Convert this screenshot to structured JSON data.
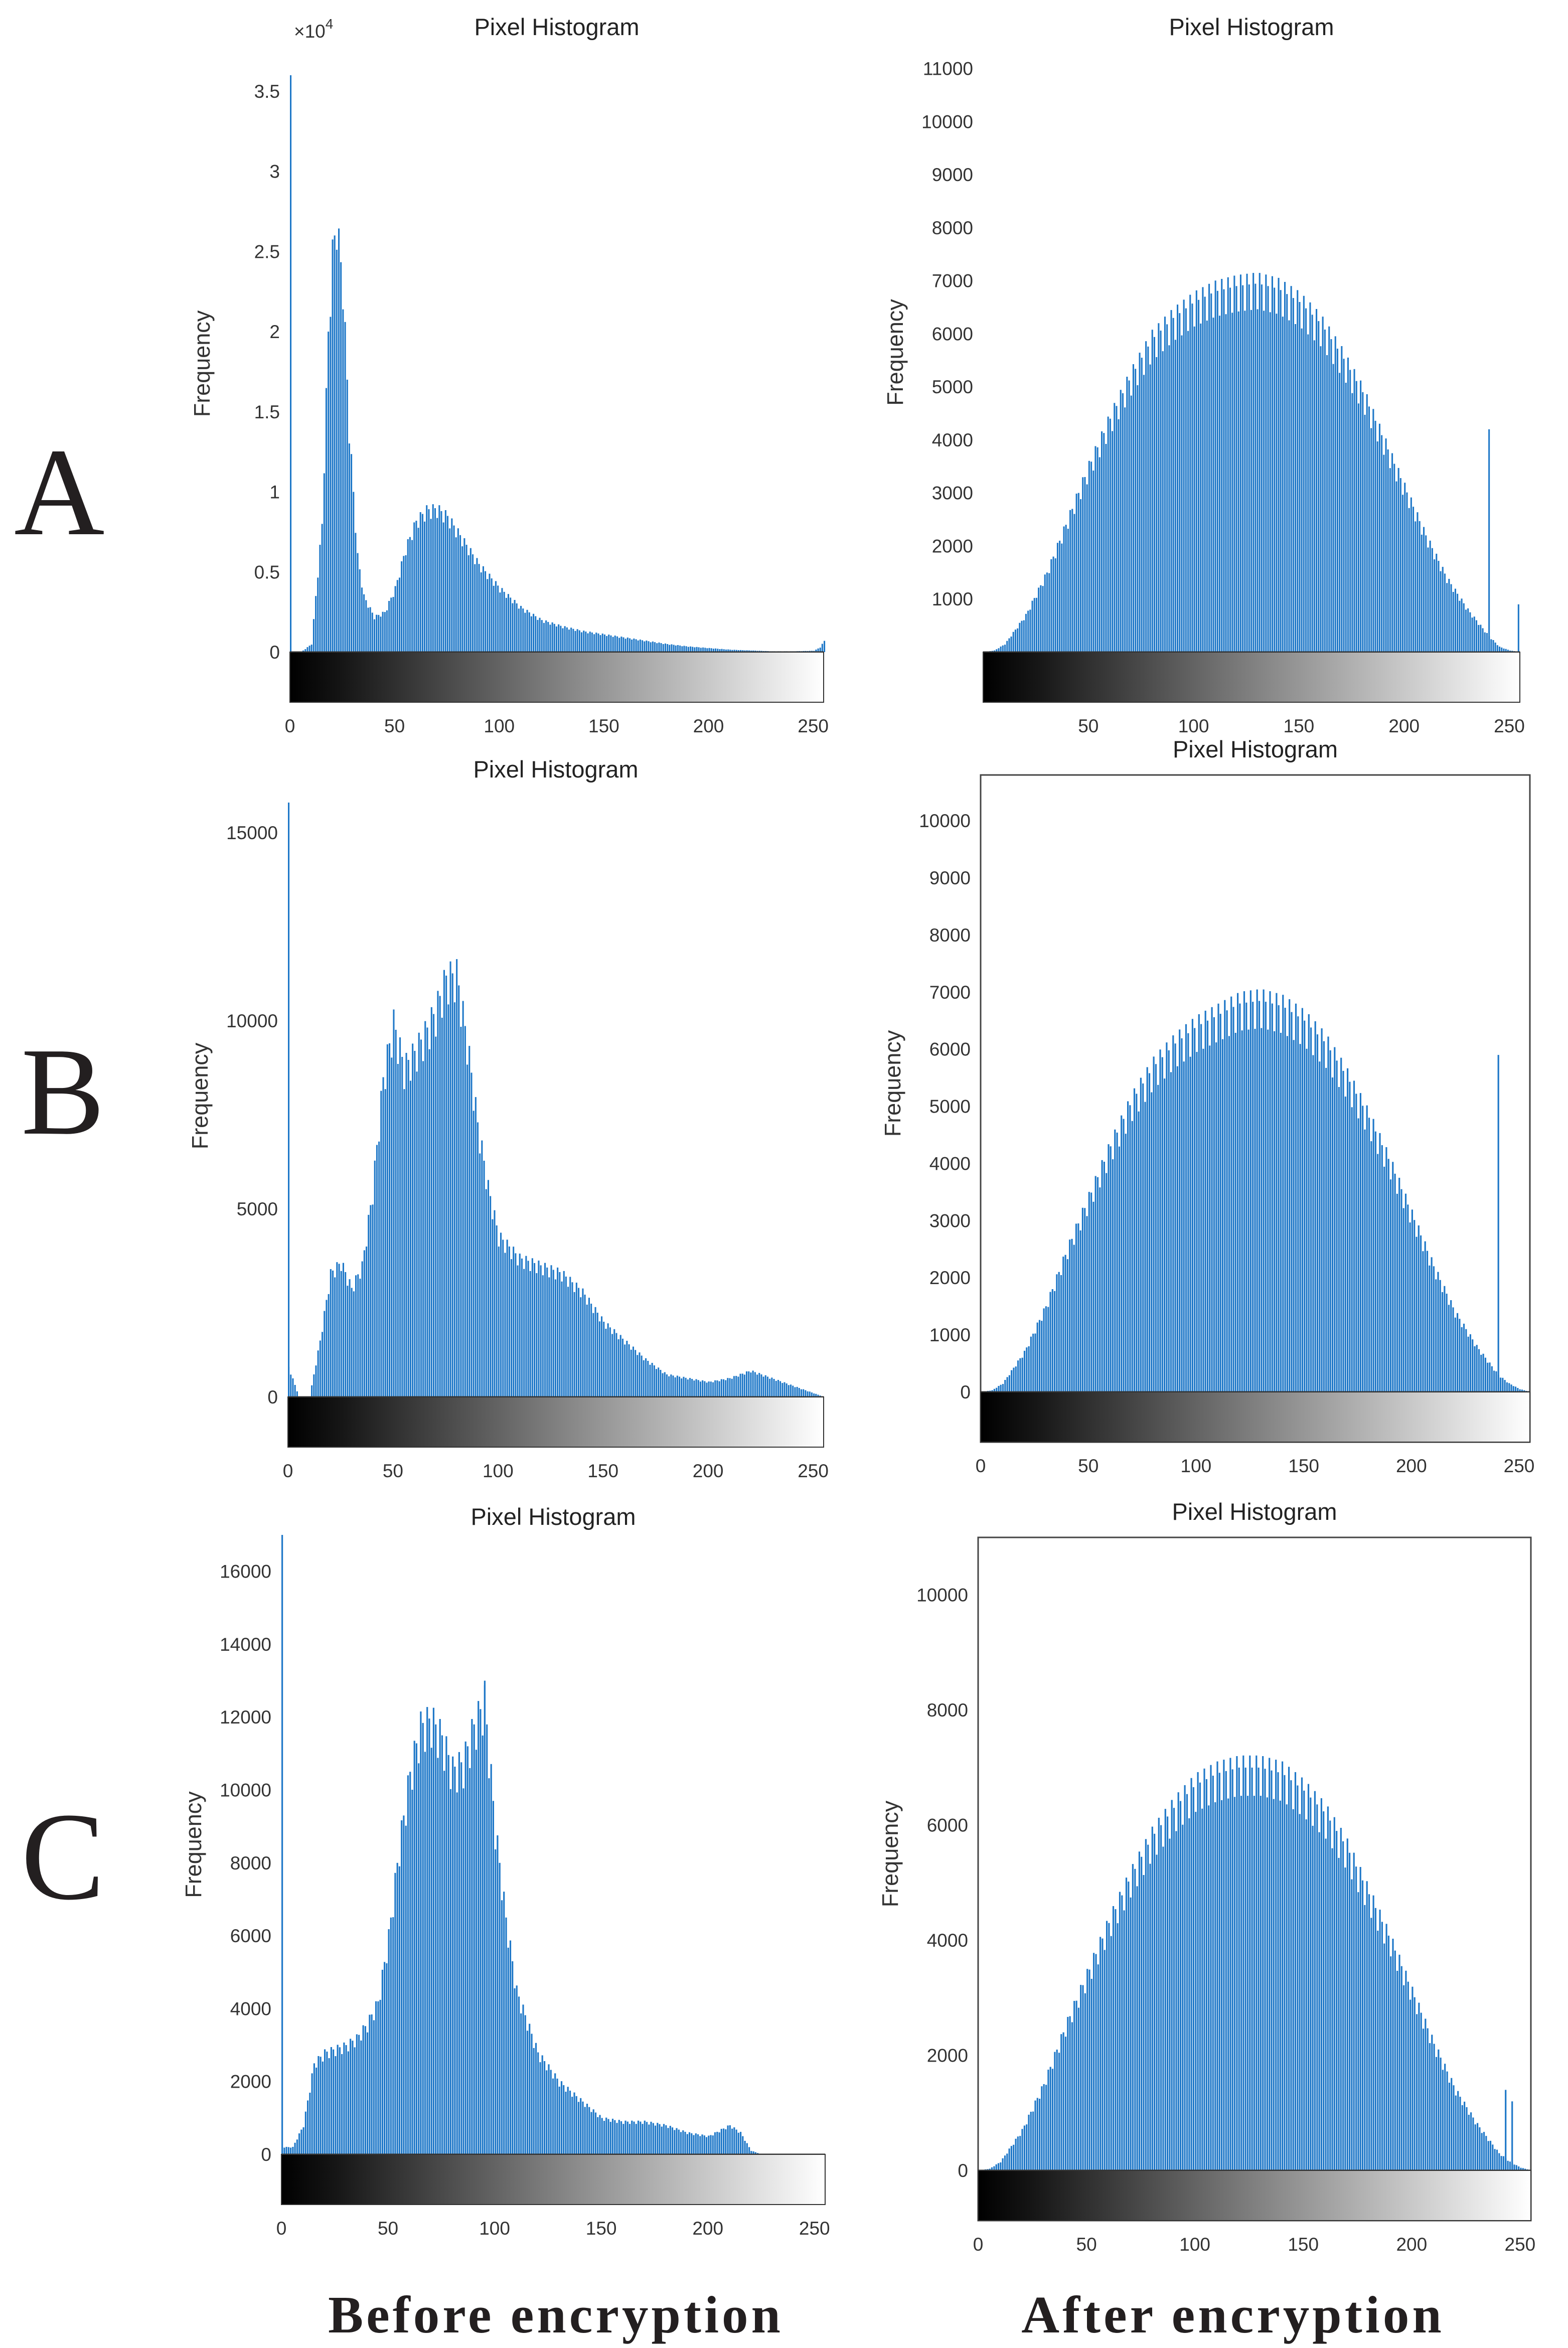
{
  "figure": {
    "rows": [
      {
        "letter": "A"
      },
      {
        "letter": "B"
      },
      {
        "letter": "C"
      }
    ],
    "captions": {
      "left": "Before encryption",
      "right": "After encryption"
    },
    "colors": {
      "bar": "#1f78c8",
      "frame": "#444444"
    }
  },
  "chart_data": [
    {
      "id": "A-before",
      "type": "bar",
      "title": "Pixel Histogram",
      "xlabel": "",
      "ylabel": "Frequency",
      "xlim": [
        0,
        255
      ],
      "ylim": [
        0,
        36000
      ],
      "y_exponent": "×10^4",
      "multiplier": "×10",
      "exponent": "4",
      "value_scale": 10000,
      "xticks": [
        "0",
        "50",
        "100",
        "150",
        "200",
        "250"
      ],
      "yticks": [
        "0",
        "0.5",
        "1",
        "1.5",
        "2",
        "2.5",
        "3",
        "3.5"
      ],
      "x": [
        0,
        5,
        10,
        15,
        18,
        20,
        22,
        25,
        28,
        32,
        35,
        40,
        45,
        50,
        55,
        60,
        65,
        70,
        75,
        80,
        85,
        90,
        100,
        110,
        120,
        130,
        140,
        150,
        160,
        170,
        180,
        190,
        200,
        210,
        220,
        230,
        240,
        250,
        253,
        255
      ],
      "y": [
        0,
        0,
        500,
        8000,
        20000,
        25000,
        27000,
        23000,
        14000,
        6000,
        3500,
        2200,
        2500,
        4000,
        6500,
        8200,
        8900,
        9000,
        8500,
        7500,
        6500,
        5500,
        4000,
        2800,
        2000,
        1600,
        1300,
        1100,
        900,
        700,
        500,
        350,
        250,
        150,
        100,
        50,
        50,
        80,
        300,
        700
      ],
      "extra_bars": [
        {
          "x": 0,
          "y": 36000
        }
      ]
    },
    {
      "id": "A-after",
      "type": "bar",
      "title": "Pixel Histogram",
      "xlabel": "",
      "ylabel": "Frequency",
      "xlim": [
        0,
        255
      ],
      "ylim": [
        0,
        11300
      ],
      "xticks": [
        "50",
        "100",
        "150",
        "200",
        "250"
      ],
      "yticks": [
        "1000",
        "2000",
        "3000",
        "4000",
        "5000",
        "6000",
        "7000",
        "8000",
        "9000",
        "10000",
        "11000"
      ],
      "x": [
        0,
        5,
        10,
        20,
        30,
        40,
        50,
        60,
        70,
        80,
        90,
        100,
        110,
        120,
        130,
        140,
        150,
        160,
        170,
        180,
        190,
        200,
        210,
        220,
        230,
        240,
        245,
        250,
        255
      ],
      "y": [
        0,
        30,
        150,
        700,
        1500,
        2500,
        3500,
        4400,
        5200,
        5900,
        6300,
        6600,
        6800,
        6900,
        6950,
        6850,
        6600,
        6200,
        5600,
        4900,
        4000,
        3100,
        2200,
        1400,
        800,
        300,
        100,
        30,
        0
      ],
      "extra_bars": [
        {
          "x": 240,
          "y": 4200
        },
        {
          "x": 254,
          "y": 900
        }
      ]
    },
    {
      "id": "B-before",
      "type": "bar",
      "title": "Pixel Histogram",
      "xlabel": "",
      "ylabel": "Frequency",
      "xlim": [
        0,
        255
      ],
      "ylim": [
        0,
        16000
      ],
      "xticks": [
        "0",
        "50",
        "100",
        "150",
        "200",
        "250"
      ],
      "yticks": [
        "0",
        "5000",
        "10000",
        "15000"
      ],
      "x": [
        0,
        5,
        10,
        15,
        20,
        25,
        30,
        35,
        40,
        45,
        50,
        55,
        60,
        65,
        70,
        75,
        80,
        85,
        90,
        95,
        100,
        110,
        120,
        130,
        140,
        150,
        160,
        170,
        180,
        190,
        200,
        210,
        220,
        230,
        240,
        250,
        255
      ],
      "y": [
        800,
        0,
        0,
        1500,
        3300,
        3600,
        2900,
        3500,
        5500,
        8500,
        10000,
        8800,
        9200,
        9700,
        10300,
        11200,
        11300,
        9500,
        7300,
        5600,
        4300,
        3700,
        3500,
        3300,
        2800,
        2000,
        1500,
        1000,
        600,
        500,
        400,
        500,
        700,
        500,
        300,
        100,
        0
      ],
      "extra_bars": [
        {
          "x": 0,
          "y": 15800
        }
      ]
    },
    {
      "id": "B-after",
      "type": "bar",
      "title": "Pixel Histogram",
      "xlabel": "",
      "ylabel": "Frequency",
      "xlim": [
        0,
        255
      ],
      "ylim": [
        0,
        10800
      ],
      "xticks": [
        "0",
        "50",
        "100",
        "150",
        "200",
        "250"
      ],
      "yticks": [
        "0",
        "1000",
        "2000",
        "3000",
        "4000",
        "5000",
        "6000",
        "7000",
        "8000",
        "9000",
        "10000"
      ],
      "x": [
        0,
        5,
        10,
        20,
        30,
        40,
        50,
        60,
        70,
        80,
        90,
        100,
        110,
        120,
        130,
        140,
        150,
        160,
        170,
        180,
        190,
        200,
        210,
        220,
        230,
        240,
        245,
        250,
        255
      ],
      "y": [
        0,
        30,
        150,
        700,
        1500,
        2500,
        3400,
        4300,
        5100,
        5700,
        6100,
        6400,
        6600,
        6800,
        6850,
        6750,
        6500,
        6100,
        5500,
        4800,
        4000,
        3100,
        2200,
        1400,
        800,
        300,
        150,
        50,
        0
      ],
      "extra_bars": [
        {
          "x": 240,
          "y": 5900
        }
      ]
    },
    {
      "id": "C-before",
      "type": "bar",
      "title": "Pixel Histogram",
      "xlabel": "",
      "ylabel": "Frequency",
      "xlim": [
        0,
        255
      ],
      "ylim": [
        0,
        17000
      ],
      "xticks": [
        "0",
        "50",
        "100",
        "150",
        "200",
        "250"
      ],
      "yticks": [
        "0",
        "2000",
        "4000",
        "6000",
        "8000",
        "10000",
        "12000",
        "14000",
        "16000"
      ],
      "x": [
        0,
        5,
        10,
        15,
        20,
        25,
        30,
        35,
        40,
        45,
        50,
        55,
        60,
        65,
        70,
        75,
        80,
        85,
        90,
        95,
        100,
        105,
        110,
        120,
        130,
        140,
        150,
        160,
        170,
        180,
        190,
        200,
        210,
        215,
        220,
        225,
        230,
        255
      ],
      "y": [
        200,
        200,
        800,
        2500,
        2800,
        2900,
        3000,
        3200,
        3600,
        4200,
        6000,
        8500,
        10500,
        11800,
        12000,
        11500,
        10600,
        10800,
        11800,
        12500,
        9000,
        6500,
        4500,
        2800,
        2000,
        1500,
        1000,
        900,
        900,
        800,
        600,
        500,
        800,
        600,
        100,
        0,
        0,
        0
      ],
      "extra_bars": [
        {
          "x": 0,
          "y": 17000
        },
        {
          "x": 95,
          "y": 13000
        }
      ]
    },
    {
      "id": "C-after",
      "type": "bar",
      "title": "Pixel Histogram",
      "xlabel": "",
      "ylabel": "Frequency",
      "xlim": [
        0,
        255
      ],
      "ylim": [
        0,
        11000
      ],
      "xticks": [
        "0",
        "50",
        "100",
        "150",
        "200",
        "250"
      ],
      "yticks": [
        "0",
        "2000",
        "4000",
        "6000",
        "8000",
        "10000"
      ],
      "x": [
        0,
        5,
        10,
        20,
        30,
        40,
        50,
        60,
        70,
        80,
        90,
        100,
        110,
        120,
        130,
        140,
        150,
        160,
        170,
        180,
        190,
        200,
        210,
        220,
        230,
        240,
        245,
        250,
        255
      ],
      "y": [
        0,
        30,
        150,
        700,
        1500,
        2500,
        3400,
        4300,
        5100,
        5800,
        6300,
        6700,
        6900,
        7000,
        7000,
        6900,
        6600,
        6200,
        5600,
        4800,
        4000,
        3100,
        2200,
        1400,
        800,
        300,
        150,
        50,
        0
      ],
      "extra_bars": [
        {
          "x": 243,
          "y": 1400
        },
        {
          "x": 246,
          "y": 1200
        }
      ]
    }
  ]
}
